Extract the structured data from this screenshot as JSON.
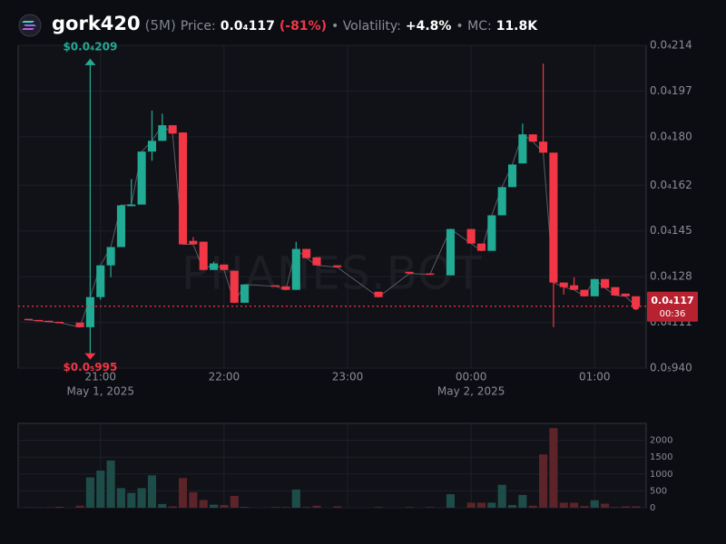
{
  "header": {
    "title": "gork420",
    "interval": "(5M)",
    "price_label": "Price:",
    "price": "0.0₄117",
    "change": "(-81%)",
    "volatility_label": "• Volatility:",
    "volatility": "+4.8%",
    "mc_label": "• MC:",
    "mc": "11.8K"
  },
  "chart_data": [
    {
      "type": "candlestick",
      "watermark": "PHANES.BOT",
      "up_color": "#22ab94",
      "down_color": "#f23645",
      "xlim": [
        "2025-05-01 20:20",
        "2025-05-02 01:25"
      ],
      "xticks": [
        {
          "value": "2025-05-01 21:00",
          "label": "21:00"
        },
        {
          "value": "2025-05-01 22:00",
          "label": "22:00"
        },
        {
          "value": "2025-05-01 23:00",
          "label": "23:00"
        },
        {
          "value": "2025-05-02 00:00",
          "label": "00:00"
        },
        {
          "value": "2025-05-02 01:00",
          "label": "01:00"
        }
      ],
      "date_labels": [
        {
          "value": "2025-05-01 21:00",
          "label": "May 1, 2025"
        },
        {
          "value": "2025-05-02 00:00",
          "label": "May 2, 2025"
        }
      ],
      "ylim": [
        9.4e-06,
        2.14e-05
      ],
      "yticks": [
        {
          "value": 2.14e-05,
          "label": "0.0₄214"
        },
        {
          "value": 1.97e-05,
          "label": "0.0₄197"
        },
        {
          "value": 1.8e-05,
          "label": "0.0₄180"
        },
        {
          "value": 1.62e-05,
          "label": "0.0₄162"
        },
        {
          "value": 1.45e-05,
          "label": "0.0₄145"
        },
        {
          "value": 1.28e-05,
          "label": "0.0₄128"
        },
        {
          "value": 1.11e-05,
          "label": "0.0₄111"
        },
        {
          "value": 9.4e-06,
          "label": "0.0₅940"
        }
      ],
      "grid": true,
      "x": [
        "2025-05-01 20:25",
        "2025-05-01 20:30",
        "2025-05-01 20:35",
        "2025-05-01 20:40",
        "2025-05-01 20:50",
        "2025-05-01 20:55",
        "2025-05-01 21:00",
        "2025-05-01 21:05",
        "2025-05-01 21:10",
        "2025-05-01 21:15",
        "2025-05-01 21:20",
        "2025-05-01 21:25",
        "2025-05-01 21:30",
        "2025-05-01 21:35",
        "2025-05-01 21:40",
        "2025-05-01 21:45",
        "2025-05-01 21:50",
        "2025-05-01 21:55",
        "2025-05-01 22:00",
        "2025-05-01 22:05",
        "2025-05-01 22:10",
        "2025-05-01 22:25",
        "2025-05-01 22:30",
        "2025-05-01 22:35",
        "2025-05-01 22:40",
        "2025-05-01 22:45",
        "2025-05-01 22:55",
        "2025-05-01 23:15",
        "2025-05-01 23:30",
        "2025-05-01 23:40",
        "2025-05-01 23:50",
        "2025-05-02 00:00",
        "2025-05-02 00:05",
        "2025-05-02 00:10",
        "2025-05-02 00:15",
        "2025-05-02 00:20",
        "2025-05-02 00:25",
        "2025-05-02 00:30",
        "2025-05-02 00:35",
        "2025-05-02 00:40",
        "2025-05-02 00:45",
        "2025-05-02 00:50",
        "2025-05-02 00:55",
        "2025-05-02 01:00",
        "2025-05-02 01:05",
        "2025-05-02 01:10",
        "2025-05-02 01:15",
        "2025-05-02 01:20"
      ],
      "open": [
        1.123e-05,
        1.119e-05,
        1.116e-05,
        1.112e-05,
        1.109e-05,
        1.092e-05,
        1.204e-05,
        1.322e-05,
        1.39e-05,
        1.542e-05,
        1.548e-05,
        1.745e-05,
        1.785e-05,
        1.843e-05,
        1.816e-05,
        1.413e-05,
        1.41e-05,
        1.305e-05,
        1.325e-05,
        1.302e-05,
        1.183e-05,
        1.248e-05,
        1.244e-05,
        1.231e-05,
        1.383e-05,
        1.352e-05,
        1.322e-05,
        1.224e-05,
        1.298e-05,
        1.292e-05,
        1.285e-05,
        1.457e-05,
        1.403e-05,
        1.376e-05,
        1.508e-05,
        1.613e-05,
        1.701e-05,
        1.809e-05,
        1.782e-05,
        1.741e-05,
        1.258e-05,
        1.248e-05,
        1.231e-05,
        1.207e-05,
        1.271e-05,
        1.241e-05,
        1.217e-05,
        1.207e-05
      ],
      "high": [
        1.123e-05,
        1.119e-05,
        1.116e-05,
        1.112e-05,
        1.109e-05,
        2.09e-05,
        1.322e-05,
        1.39e-05,
        1.548e-05,
        1.643e-05,
        1.745e-05,
        1.897e-05,
        1.886e-05,
        1.843e-05,
        1.816e-05,
        1.427e-05,
        1.41e-05,
        1.336e-05,
        1.325e-05,
        1.302e-05,
        1.251e-05,
        1.248e-05,
        1.244e-05,
        1.41e-05,
        1.383e-05,
        1.352e-05,
        1.322e-05,
        1.224e-05,
        1.298e-05,
        1.292e-05,
        1.457e-05,
        1.457e-05,
        1.403e-05,
        1.508e-05,
        1.613e-05,
        1.697e-05,
        1.849e-05,
        1.809e-05,
        2.072e-05,
        1.741e-05,
        1.258e-05,
        1.278e-05,
        1.231e-05,
        1.271e-05,
        1.271e-05,
        1.241e-05,
        1.217e-05,
        1.207e-05
      ],
      "low": [
        1.119e-05,
        1.116e-05,
        1.112e-05,
        1.109e-05,
        1.092e-05,
        9.95e-06,
        1.194e-05,
        1.278e-05,
        1.39e-05,
        1.542e-05,
        1.548e-05,
        1.711e-05,
        1.785e-05,
        1.812e-05,
        1.4e-05,
        1.4e-05,
        1.305e-05,
        1.305e-05,
        1.305e-05,
        1.183e-05,
        1.183e-05,
        1.244e-05,
        1.231e-05,
        1.231e-05,
        1.349e-05,
        1.322e-05,
        1.315e-05,
        1.204e-05,
        1.292e-05,
        1.288e-05,
        1.285e-05,
        1.403e-05,
        1.376e-05,
        1.376e-05,
        1.508e-05,
        1.613e-05,
        1.701e-05,
        1.782e-05,
        1.741e-05,
        1.092e-05,
        1.214e-05,
        1.231e-05,
        1.207e-05,
        1.207e-05,
        1.238e-05,
        1.21e-05,
        1.207e-05,
        1.17e-05
      ],
      "close": [
        1.119e-05,
        1.116e-05,
        1.112e-05,
        1.109e-05,
        1.092e-05,
        1.204e-05,
        1.322e-05,
        1.39e-05,
        1.545e-05,
        1.548e-05,
        1.745e-05,
        1.785e-05,
        1.843e-05,
        1.812e-05,
        1.4e-05,
        1.4e-05,
        1.305e-05,
        1.329e-05,
        1.305e-05,
        1.183e-05,
        1.251e-05,
        1.244e-05,
        1.231e-05,
        1.383e-05,
        1.349e-05,
        1.322e-05,
        1.315e-05,
        1.204e-05,
        1.292e-05,
        1.288e-05,
        1.457e-05,
        1.403e-05,
        1.376e-05,
        1.508e-05,
        1.613e-05,
        1.697e-05,
        1.809e-05,
        1.782e-05,
        1.741e-05,
        1.258e-05,
        1.241e-05,
        1.231e-05,
        1.207e-05,
        1.271e-05,
        1.238e-05,
        1.21e-05,
        1.207e-05,
        1.17e-05
      ],
      "annotations": [
        {
          "x": "2025-05-01 20:55",
          "value": 2.09e-05,
          "label": "$0.0₄209",
          "color": "#22ab94"
        },
        {
          "x": "2025-05-01 20:55",
          "value": 9.95e-06,
          "label": "$0.0₅995",
          "color": "#f23645"
        }
      ],
      "current_price": {
        "value": 1.17e-05,
        "label": "0.0₄117",
        "countdown": "00:36",
        "color": "#f23645"
      }
    },
    {
      "type": "bar",
      "up_color": "#1e4d49",
      "down_color": "#5c2429",
      "x": [
        "2025-05-01 20:25",
        "2025-05-01 20:30",
        "2025-05-01 20:35",
        "2025-05-01 20:40",
        "2025-05-01 20:50",
        "2025-05-01 20:55",
        "2025-05-01 21:00",
        "2025-05-01 21:05",
        "2025-05-01 21:10",
        "2025-05-01 21:15",
        "2025-05-01 21:20",
        "2025-05-01 21:25",
        "2025-05-01 21:30",
        "2025-05-01 21:35",
        "2025-05-01 21:40",
        "2025-05-01 21:45",
        "2025-05-01 21:50",
        "2025-05-01 21:55",
        "2025-05-01 22:00",
        "2025-05-01 22:05",
        "2025-05-01 22:10",
        "2025-05-01 22:25",
        "2025-05-01 22:30",
        "2025-05-01 22:35",
        "2025-05-01 22:40",
        "2025-05-01 22:45",
        "2025-05-01 22:55",
        "2025-05-01 23:15",
        "2025-05-01 23:30",
        "2025-05-01 23:40",
        "2025-05-01 23:50",
        "2025-05-02 00:00",
        "2025-05-02 00:05",
        "2025-05-02 00:10",
        "2025-05-02 00:15",
        "2025-05-02 00:20",
        "2025-05-02 00:25",
        "2025-05-02 00:30",
        "2025-05-02 00:35",
        "2025-05-02 00:40",
        "2025-05-02 00:45",
        "2025-05-02 00:50",
        "2025-05-02 00:55",
        "2025-05-02 01:00",
        "2025-05-02 01:05",
        "2025-05-02 01:10",
        "2025-05-02 01:15",
        "2025-05-02 01:20"
      ],
      "values": [
        10,
        10,
        10,
        30,
        60,
        900,
        1100,
        1400,
        580,
        440,
        580,
        960,
        110,
        40,
        880,
        460,
        230,
        90,
        80,
        350,
        20,
        20,
        20,
        540,
        20,
        60,
        40,
        20,
        20,
        20,
        400,
        150,
        150,
        150,
        680,
        80,
        380,
        60,
        1580,
        2360,
        150,
        150,
        50,
        220,
        120,
        20,
        40,
        40
      ],
      "ylim": [
        0,
        2500
      ],
      "yticks": [
        0,
        500,
        1000,
        1500,
        2000
      ],
      "grid": true
    }
  ]
}
